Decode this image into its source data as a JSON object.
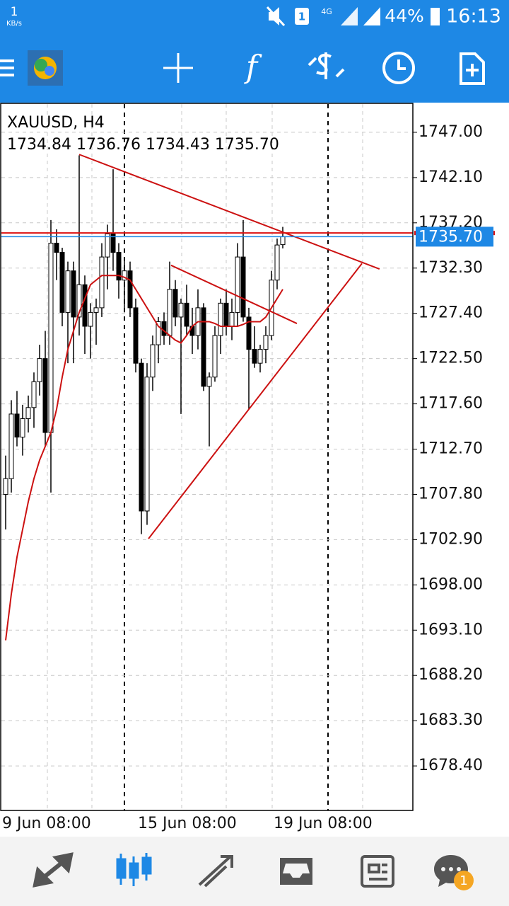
{
  "status_bar": {
    "speed": "1",
    "speed_unit": "KB/s",
    "notification": "1",
    "network": "4G",
    "battery": "44%",
    "time": "16:13"
  },
  "chart_data": {
    "type": "candlestick",
    "title": "XAUUSD, H4",
    "subtitle": "1734.84 1736.76 1734.43 1735.70",
    "categories": [
      "9 Jun 08:00",
      null,
      null,
      null,
      null,
      null,
      null,
      null,
      null,
      null,
      null,
      null,
      null,
      null,
      null,
      null,
      null,
      null,
      null,
      null,
      null,
      null,
      null,
      "15 Jun 08:00",
      null,
      null,
      null,
      null,
      null,
      null,
      null,
      null,
      null,
      null,
      null,
      null,
      null,
      null,
      null,
      null,
      null,
      null,
      null,
      null,
      null,
      null,
      null,
      "19 Jun 08:00",
      null,
      null
    ],
    "open": [
      1707.8,
      1709.5,
      1716.5,
      1714.0,
      1716.0,
      1717.2,
      1720.0,
      1722.5,
      1714.5,
      1735.0,
      1734.0,
      1727.5,
      1732.0,
      1727.0,
      1730.5,
      1726.0,
      1727.5,
      1728.0,
      1733.5,
      1736.0,
      1734.0,
      1731.0,
      1732.0,
      1728.0,
      1722.0,
      1706.0,
      1720.5,
      1724.0,
      1726.5,
      1725.0,
      1730.0,
      1727.0,
      1728.5,
      1726.0,
      1725.0,
      1728.0,
      1719.5,
      1720.5,
      1725.0,
      1728.5,
      1726.0,
      1727.5,
      1733.5,
      1727.0,
      1723.5,
      1722.0,
      1723.5,
      1725.0,
      1731.0,
      1734.84
    ],
    "high": [
      1712.0,
      1718.0,
      1719.0,
      1717.5,
      1718.5,
      1721.0,
      1724.0,
      1725.5,
      1737.5,
      1736.5,
      1734.5,
      1733.0,
      1733.0,
      1744.5,
      1731.5,
      1728.5,
      1729.0,
      1735.0,
      1737.0,
      1743.0,
      1735.0,
      1733.5,
      1733.0,
      1729.0,
      1722.5,
      1722.0,
      1725.0,
      1727.0,
      1727.5,
      1733.0,
      1731.0,
      1729.0,
      1730.5,
      1728.0,
      1730.0,
      1728.5,
      1721.0,
      1726.0,
      1729.0,
      1730.0,
      1729.0,
      1735.0,
      1737.5,
      1728.0,
      1726.0,
      1724.0,
      1726.0,
      1732.0,
      1735.5,
      1736.76
    ],
    "low": [
      1704.0,
      1708.0,
      1713.0,
      1712.0,
      1714.5,
      1715.0,
      1718.5,
      1713.0,
      1708.0,
      1731.0,
      1726.0,
      1722.0,
      1722.0,
      1725.0,
      1723.0,
      1722.5,
      1724.0,
      1727.0,
      1730.0,
      1732.0,
      1729.0,
      1727.5,
      1727.0,
      1721.0,
      1703.5,
      1704.5,
      1719.0,
      1722.0,
      1724.0,
      1724.0,
      1726.0,
      1716.5,
      1725.0,
      1723.0,
      1723.5,
      1719.0,
      1713.0,
      1720.0,
      1723.0,
      1725.0,
      1724.5,
      1726.0,
      1726.5,
      1717.0,
      1721.5,
      1721.0,
      1722.0,
      1724.5,
      1730.0,
      1734.43
    ],
    "close": [
      1709.5,
      1716.5,
      1714.0,
      1716.0,
      1717.2,
      1720.0,
      1722.5,
      1714.5,
      1735.0,
      1734.0,
      1727.5,
      1732.0,
      1727.0,
      1730.5,
      1726.0,
      1727.5,
      1728.0,
      1733.5,
      1736.0,
      1734.0,
      1731.0,
      1732.0,
      1728.0,
      1722.0,
      1706.0,
      1720.5,
      1724.0,
      1726.5,
      1725.0,
      1730.0,
      1727.0,
      1728.5,
      1726.0,
      1725.0,
      1728.0,
      1719.5,
      1720.5,
      1725.0,
      1728.5,
      1726.0,
      1727.5,
      1733.5,
      1727.0,
      1723.5,
      1722.0,
      1723.5,
      1725.0,
      1731.0,
      1734.8,
      1735.7
    ],
    "moving_average": {
      "color": "#cc1111",
      "values": [
        1692,
        1697,
        1701,
        1704,
        1707,
        1709.5,
        1711.5,
        1713,
        1714.5,
        1717,
        1720.5,
        1723.5,
        1725.5,
        1727.5,
        1729,
        1730.5,
        1731,
        1731.5,
        1731.5,
        1731.5,
        1731.5,
        1731.3,
        1731,
        1730,
        1729,
        1728,
        1727,
        1726,
        1725.5,
        1725,
        1724.5,
        1724.2,
        1725,
        1726,
        1726.5,
        1726.5,
        1726.5,
        1726.3,
        1726,
        1726,
        1726,
        1726,
        1726.2,
        1726.5,
        1726.5,
        1726.5,
        1727,
        1728,
        1729,
        1730
      ]
    },
    "trendlines": [
      {
        "color": "#cc1111",
        "x": [
          13,
          66.1
        ],
        "y": [
          1744.6,
          1732.2
        ]
      },
      {
        "color": "#cc1111",
        "x": [
          29.25,
          51.5
        ],
        "y": [
          1732.6,
          1726.3
        ]
      },
      {
        "color": "#cc1111",
        "x": [
          25.25,
          63
        ],
        "y": [
          1703.0,
          1732.8
        ]
      }
    ],
    "ask_line": {
      "color": "#dd1111",
      "value": 1736.1
    },
    "bid_line": {
      "color": "#1e88e5",
      "value": 1735.7,
      "label": "1735.70"
    },
    "up_color": "#ffffff",
    "down_color": "#000000",
    "ylim": [
      1673.58,
      1750.06
    ],
    "yticks": [
      {
        "value": 1747,
        "label": "1747.00"
      },
      {
        "value": 1742.1,
        "label": "1742.10"
      },
      {
        "value": 1737.2,
        "label": "1737.20"
      },
      {
        "value": 1732.3,
        "label": "1732.30"
      },
      {
        "value": 1727.4,
        "label": "1727.40"
      },
      {
        "value": 1722.5,
        "label": "1722.50"
      },
      {
        "value": 1717.6,
        "label": "1717.60"
      },
      {
        "value": 1712.7,
        "label": "1712.70"
      },
      {
        "value": 1707.8,
        "label": "1707.80"
      },
      {
        "value": 1702.9,
        "label": "1702.90"
      },
      {
        "value": 1698,
        "label": "1698.00"
      },
      {
        "value": 1693.1,
        "label": "1693.10"
      },
      {
        "value": 1688.2,
        "label": "1688.20"
      },
      {
        "value": 1683.3,
        "label": "1683.30"
      },
      {
        "value": 1678.4,
        "label": "1678.40"
      }
    ],
    "grid": true
  },
  "bottom_nav": {
    "badge": "1"
  }
}
